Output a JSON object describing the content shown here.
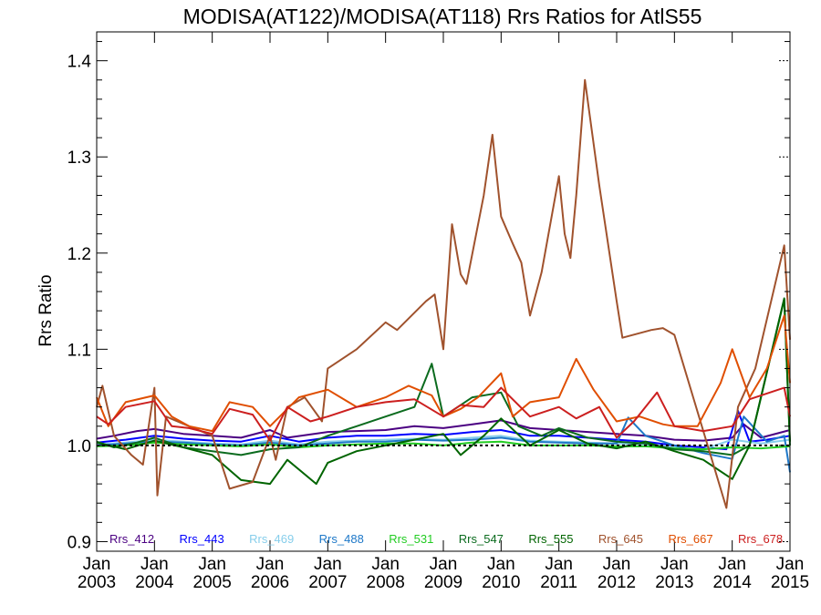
{
  "chart_data": {
    "type": "line",
    "title": "MODISA(AT122)/MODISA(AT118)  Rrs Ratios for AtlS55",
    "ylabel": "Rrs Ratio",
    "xlabel": "",
    "xlim": [
      2003.0,
      2015.0
    ],
    "ylim": [
      0.89,
      1.43
    ],
    "yticks": [
      0.9,
      1.0,
      1.1,
      1.2,
      1.3,
      1.4
    ],
    "ytick_labels": [
      "0.9",
      "1.0",
      "1.1",
      "1.2",
      "1.3",
      "1.4"
    ],
    "xticks": [
      2003,
      2004,
      2005,
      2006,
      2007,
      2008,
      2009,
      2010,
      2011,
      2012,
      2013,
      2014,
      2015
    ],
    "xtick_labels_month": "Jan",
    "xtick_labels_year": [
      "2003",
      "2004",
      "2005",
      "2006",
      "2007",
      "2008",
      "2009",
      "2010",
      "2011",
      "2012",
      "2013",
      "2014",
      "2015"
    ],
    "reference_line": 1.0,
    "grid": false,
    "legend_position": "bottom",
    "series": [
      {
        "name": "Rrs_412",
        "color": "#4b0082",
        "x": [
          2003.0,
          2003.3,
          2003.7,
          2004.0,
          2004.5,
          2005.0,
          2005.5,
          2006.0,
          2006.3,
          2007.0,
          2007.5,
          2008.0,
          2008.5,
          2009.0,
          2009.5,
          2010.0,
          2010.5,
          2011.0,
          2011.5,
          2012.0,
          2012.5,
          2013.0,
          2013.5,
          2014.0,
          2014.2,
          2014.5,
          2015.0
        ],
        "y": [
          1.007,
          1.01,
          1.015,
          1.017,
          1.012,
          1.01,
          1.008,
          1.016,
          1.008,
          1.014,
          1.015,
          1.016,
          1.02,
          1.018,
          1.022,
          1.026,
          1.018,
          1.016,
          1.014,
          1.012,
          1.01,
          1.006,
          1.005,
          1.008,
          1.022,
          1.008,
          1.016
        ]
      },
      {
        "name": "Rrs_443",
        "color": "#0000ff",
        "x": [
          2003.0,
          2003.5,
          2004.0,
          2004.5,
          2005.0,
          2005.5,
          2006.0,
          2006.5,
          2007.0,
          2007.5,
          2008.0,
          2008.5,
          2009.0,
          2009.5,
          2010.0,
          2010.5,
          2011.0,
          2011.5,
          2012.0,
          2012.5,
          2013.0,
          2013.5,
          2013.9,
          2014.1,
          2014.3,
          2014.6,
          2015.0
        ],
        "y": [
          1.003,
          1.006,
          1.01,
          1.007,
          1.005,
          1.004,
          1.01,
          1.004,
          1.008,
          1.01,
          1.01,
          1.012,
          1.011,
          1.014,
          1.016,
          1.01,
          1.01,
          1.008,
          1.006,
          1.004,
          1.0,
          0.998,
          0.996,
          1.036,
          1.004,
          1.006,
          1.01
        ]
      },
      {
        "name": "Rrs_469",
        "color": "#87ceeb",
        "x": [
          2003.0,
          2003.5,
          2004.0,
          2004.5,
          2005.0,
          2005.5,
          2006.0,
          2006.5,
          2007.0,
          2007.5,
          2008.0,
          2008.5,
          2009.0,
          2009.5,
          2010.0,
          2010.5,
          2011.0,
          2011.5,
          2012.0,
          2012.5,
          2013.0,
          2013.5,
          2014.0,
          2014.5,
          2015.0
        ],
        "y": [
          1.001,
          1.003,
          1.006,
          1.004,
          1.002,
          1.001,
          1.005,
          1.001,
          1.004,
          1.005,
          1.006,
          1.007,
          1.006,
          1.008,
          1.01,
          1.005,
          1.004,
          1.003,
          1.002,
          1.001,
          0.998,
          0.996,
          1.006,
          1.002,
          1.006
        ]
      },
      {
        "name": "Rrs_488",
        "color": "#1e78c8",
        "x": [
          2003.0,
          2003.5,
          2004.0,
          2004.5,
          2005.0,
          2005.5,
          2006.0,
          2006.5,
          2007.0,
          2007.5,
          2008.0,
          2008.5,
          2009.0,
          2009.5,
          2010.0,
          2010.5,
          2011.0,
          2011.5,
          2012.0,
          2012.2,
          2012.5,
          2013.0,
          2013.5,
          2014.0,
          2014.2,
          2014.6,
          2014.9,
          2015.0
        ],
        "y": [
          1.0,
          1.002,
          1.004,
          1.003,
          1.001,
          1.0,
          1.003,
          1.0,
          1.002,
          1.004,
          1.004,
          1.006,
          1.005,
          1.006,
          1.008,
          1.004,
          1.003,
          1.002,
          1.002,
          1.029,
          1.01,
          1.0,
          0.992,
          0.986,
          1.03,
          1.004,
          1.01,
          0.972
        ]
      },
      {
        "name": "Rrs_531",
        "color": "#22cc22",
        "x": [
          2003.0,
          2003.5,
          2004.0,
          2004.5,
          2005.0,
          2005.5,
          2006.0,
          2006.5,
          2007.0,
          2007.5,
          2008.0,
          2008.5,
          2009.0,
          2009.5,
          2010.0,
          2010.5,
          2011.0,
          2011.5,
          2012.0,
          2012.5,
          2013.0,
          2013.5,
          2014.0,
          2014.5,
          2015.0
        ],
        "y": [
          0.999,
          1.0,
          1.003,
          1.001,
          1.0,
          0.999,
          1.001,
          0.998,
          1.0,
          1.001,
          1.002,
          1.002,
          1.0,
          1.003,
          1.004,
          1.0,
          1.0,
          1.0,
          0.999,
          0.999,
          0.997,
          0.996,
          0.998,
          0.997,
          0.999
        ]
      },
      {
        "name": "Rrs_547",
        "color": "#0b6b1e",
        "x": [
          2003.0,
          2003.3,
          2003.7,
          2004.0,
          2004.5,
          2005.0,
          2005.5,
          2006.0,
          2006.5,
          2007.0,
          2007.5,
          2008.0,
          2008.5,
          2008.8,
          2009.0,
          2009.5,
          2010.0,
          2010.3,
          2010.7,
          2011.0,
          2011.5,
          2012.0,
          2012.5,
          2013.0,
          2013.5,
          2014.0,
          2014.3,
          2014.9,
          2015.0
        ],
        "y": [
          1.004,
          0.998,
          1.003,
          1.008,
          0.998,
          0.994,
          0.99,
          0.996,
          0.998,
          1.01,
          1.02,
          1.03,
          1.04,
          1.085,
          1.03,
          1.05,
          1.055,
          1.02,
          1.01,
          1.018,
          1.008,
          1.004,
          1.002,
          0.996,
          0.994,
          0.99,
          1.0,
          1.153,
          1.0
        ]
      },
      {
        "name": "Rrs_555",
        "color": "#006400",
        "x": [
          2003.0,
          2003.5,
          2004.0,
          2004.5,
          2005.0,
          2005.5,
          2006.0,
          2006.3,
          2006.8,
          2007.0,
          2007.5,
          2008.0,
          2008.5,
          2009.0,
          2009.3,
          2009.7,
          2010.0,
          2010.5,
          2011.0,
          2011.5,
          2012.0,
          2012.5,
          2013.0,
          2013.5,
          2014.0,
          2014.3,
          2014.9,
          2015.0
        ],
        "y": [
          1.003,
          0.996,
          1.005,
          0.998,
          0.99,
          0.964,
          0.96,
          0.985,
          0.96,
          0.982,
          0.994,
          1.0,
          1.006,
          1.012,
          0.99,
          1.01,
          1.028,
          1.0,
          1.016,
          1.002,
          0.997,
          1.004,
          0.994,
          0.985,
          0.965,
          1.0,
          1.152,
          1.004
        ]
      },
      {
        "name": "Rrs_645",
        "color": "#a0522d",
        "x": [
          2003.0,
          2003.1,
          2003.3,
          2003.6,
          2003.8,
          2004.0,
          2004.05,
          2004.2,
          2004.6,
          2005.0,
          2005.3,
          2005.7,
          2006.0,
          2006.1,
          2006.3,
          2006.6,
          2006.9,
          2007.0,
          2007.5,
          2008.0,
          2008.2,
          2008.7,
          2008.85,
          2009.0,
          2009.15,
          2009.3,
          2009.4,
          2009.7,
          2009.85,
          2010.0,
          2010.2,
          2010.35,
          2010.5,
          2010.7,
          2011.0,
          2011.1,
          2011.2,
          2011.3,
          2011.45,
          2011.7,
          2012.0,
          2012.1,
          2012.6,
          2012.8,
          2013.0,
          2013.5,
          2013.9,
          2014.1,
          2014.4,
          2014.9,
          2015.0
        ],
        "y": [
          1.04,
          1.062,
          1.01,
          0.99,
          0.98,
          1.06,
          0.948,
          1.03,
          1.02,
          1.01,
          0.955,
          0.962,
          1.01,
          0.985,
          1.04,
          1.05,
          1.025,
          1.08,
          1.1,
          1.128,
          1.12,
          1.15,
          1.157,
          1.1,
          1.23,
          1.178,
          1.168,
          1.26,
          1.323,
          1.238,
          1.21,
          1.19,
          1.135,
          1.18,
          1.28,
          1.22,
          1.195,
          1.26,
          1.38,
          1.27,
          1.15,
          1.112,
          1.12,
          1.122,
          1.115,
          1.015,
          0.935,
          1.04,
          1.08,
          1.208,
          1.11
        ]
      },
      {
        "name": "Rrs_667",
        "color": "#e04e00",
        "x": [
          2003.0,
          2003.2,
          2003.5,
          2004.0,
          2004.3,
          2004.6,
          2005.0,
          2005.3,
          2005.7,
          2006.0,
          2006.5,
          2007.0,
          2007.5,
          2008.0,
          2008.4,
          2008.8,
          2009.0,
          2009.3,
          2009.6,
          2010.0,
          2010.2,
          2010.5,
          2011.0,
          2011.3,
          2011.6,
          2012.0,
          2012.4,
          2012.8,
          2013.0,
          2013.4,
          2013.8,
          2014.0,
          2014.3,
          2014.6,
          2014.9,
          2015.0
        ],
        "y": [
          1.05,
          1.02,
          1.045,
          1.052,
          1.03,
          1.02,
          1.015,
          1.045,
          1.04,
          1.02,
          1.05,
          1.058,
          1.04,
          1.05,
          1.062,
          1.052,
          1.03,
          1.038,
          1.05,
          1.075,
          1.03,
          1.045,
          1.05,
          1.09,
          1.058,
          1.025,
          1.03,
          1.022,
          1.02,
          1.02,
          1.065,
          1.1,
          1.05,
          1.08,
          1.135,
          1.065
        ]
      },
      {
        "name": "Rrs_678",
        "color": "#cc1f1f",
        "x": [
          2003.0,
          2003.2,
          2003.5,
          2004.0,
          2004.3,
          2004.6,
          2005.0,
          2005.3,
          2005.7,
          2006.0,
          2006.3,
          2006.7,
          2007.0,
          2007.5,
          2008.0,
          2008.5,
          2009.0,
          2009.3,
          2009.7,
          2010.0,
          2010.5,
          2011.0,
          2011.3,
          2011.7,
          2012.0,
          2012.3,
          2012.7,
          2013.0,
          2013.5,
          2014.0,
          2014.3,
          2014.9,
          2015.0
        ],
        "y": [
          1.03,
          1.022,
          1.04,
          1.046,
          1.02,
          1.018,
          1.012,
          1.038,
          1.032,
          1.005,
          1.04,
          1.025,
          1.03,
          1.04,
          1.045,
          1.048,
          1.03,
          1.042,
          1.04,
          1.06,
          1.03,
          1.04,
          1.028,
          1.04,
          1.008,
          1.025,
          1.055,
          1.02,
          1.015,
          1.02,
          1.048,
          1.06,
          1.03
        ]
      }
    ]
  }
}
